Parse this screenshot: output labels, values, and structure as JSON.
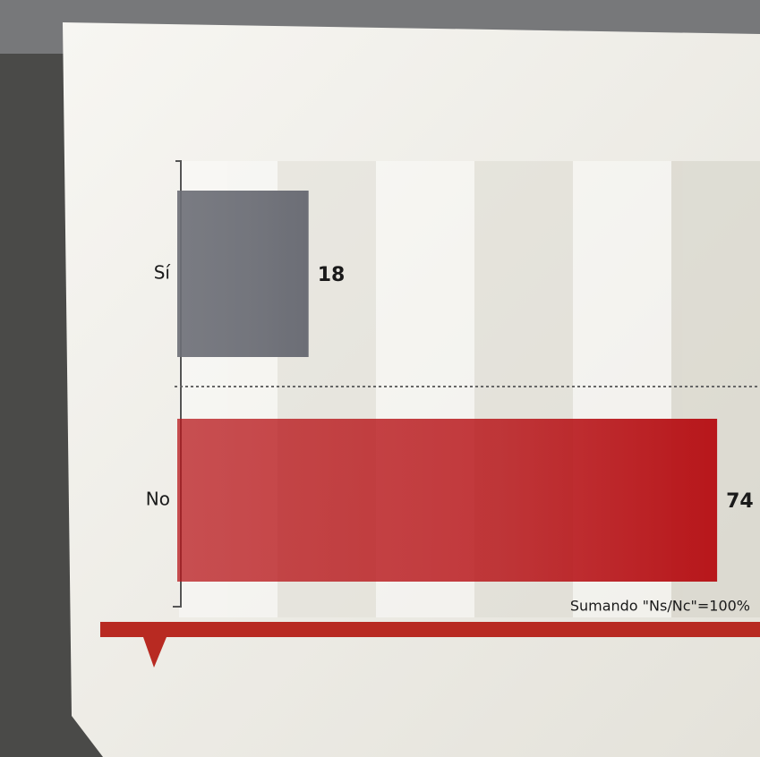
{
  "chart_data": {
    "type": "hbar",
    "categories": [
      "Sí",
      "No"
    ],
    "values": [
      18,
      74
    ],
    "colors": [
      "#6c6e76",
      "#b8171b"
    ],
    "annotation": "Sumando \"Ns/Nc\"=100%"
  }
}
